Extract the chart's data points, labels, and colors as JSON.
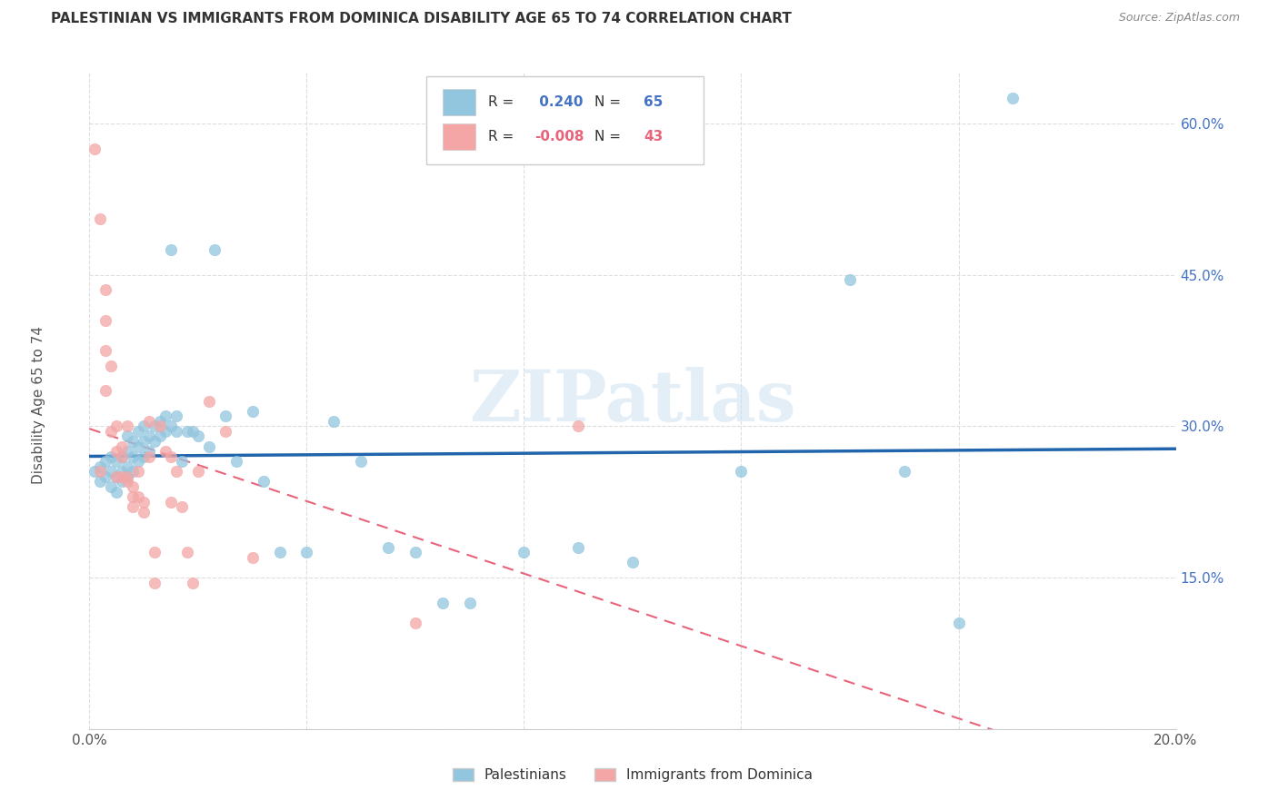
{
  "title": "PALESTINIAN VS IMMIGRANTS FROM DOMINICA DISABILITY AGE 65 TO 74 CORRELATION CHART",
  "source": "Source: ZipAtlas.com",
  "ylabel": "Disability Age 65 to 74",
  "xlim": [
    0.0,
    0.2
  ],
  "ylim": [
    0.0,
    0.65
  ],
  "legend_r_blue": "0.240",
  "legend_n_blue": "65",
  "legend_r_pink": "-0.008",
  "legend_n_pink": "43",
  "blue_color": "#92c5de",
  "pink_color": "#f4a6a6",
  "blue_line_color": "#2166ac",
  "pink_line_color": "#e8647a",
  "blue_scatter_x": [
    0.001,
    0.002,
    0.002,
    0.003,
    0.003,
    0.004,
    0.004,
    0.004,
    0.005,
    0.005,
    0.005,
    0.006,
    0.006,
    0.006,
    0.007,
    0.007,
    0.007,
    0.007,
    0.008,
    0.008,
    0.008,
    0.009,
    0.009,
    0.009,
    0.01,
    0.01,
    0.01,
    0.011,
    0.011,
    0.012,
    0.012,
    0.013,
    0.013,
    0.014,
    0.014,
    0.015,
    0.015,
    0.016,
    0.016,
    0.017,
    0.018,
    0.019,
    0.02,
    0.022,
    0.023,
    0.025,
    0.027,
    0.03,
    0.032,
    0.035,
    0.04,
    0.045,
    0.05,
    0.055,
    0.06,
    0.065,
    0.07,
    0.08,
    0.09,
    0.1,
    0.12,
    0.14,
    0.15,
    0.16,
    0.17
  ],
  "blue_scatter_y": [
    0.255,
    0.26,
    0.245,
    0.25,
    0.265,
    0.24,
    0.255,
    0.27,
    0.235,
    0.25,
    0.265,
    0.245,
    0.255,
    0.27,
    0.25,
    0.26,
    0.275,
    0.29,
    0.255,
    0.27,
    0.285,
    0.265,
    0.28,
    0.295,
    0.27,
    0.285,
    0.3,
    0.275,
    0.29,
    0.285,
    0.3,
    0.29,
    0.305,
    0.295,
    0.31,
    0.3,
    0.475,
    0.295,
    0.31,
    0.265,
    0.295,
    0.295,
    0.29,
    0.28,
    0.475,
    0.31,
    0.265,
    0.315,
    0.245,
    0.175,
    0.175,
    0.305,
    0.265,
    0.18,
    0.175,
    0.125,
    0.125,
    0.175,
    0.18,
    0.165,
    0.255,
    0.445,
    0.255,
    0.105,
    0.625
  ],
  "pink_scatter_x": [
    0.001,
    0.002,
    0.002,
    0.003,
    0.003,
    0.003,
    0.003,
    0.004,
    0.004,
    0.005,
    0.005,
    0.005,
    0.006,
    0.006,
    0.006,
    0.007,
    0.007,
    0.007,
    0.008,
    0.008,
    0.008,
    0.009,
    0.009,
    0.01,
    0.01,
    0.011,
    0.011,
    0.012,
    0.012,
    0.013,
    0.014,
    0.015,
    0.015,
    0.016,
    0.017,
    0.018,
    0.019,
    0.02,
    0.022,
    0.025,
    0.03,
    0.06,
    0.09
  ],
  "pink_scatter_y": [
    0.575,
    0.505,
    0.255,
    0.435,
    0.405,
    0.375,
    0.335,
    0.36,
    0.295,
    0.3,
    0.275,
    0.25,
    0.28,
    0.27,
    0.25,
    0.3,
    0.25,
    0.245,
    0.24,
    0.23,
    0.22,
    0.255,
    0.23,
    0.215,
    0.225,
    0.305,
    0.27,
    0.175,
    0.145,
    0.3,
    0.275,
    0.27,
    0.225,
    0.255,
    0.22,
    0.175,
    0.145,
    0.255,
    0.325,
    0.295,
    0.17,
    0.105,
    0.3
  ]
}
